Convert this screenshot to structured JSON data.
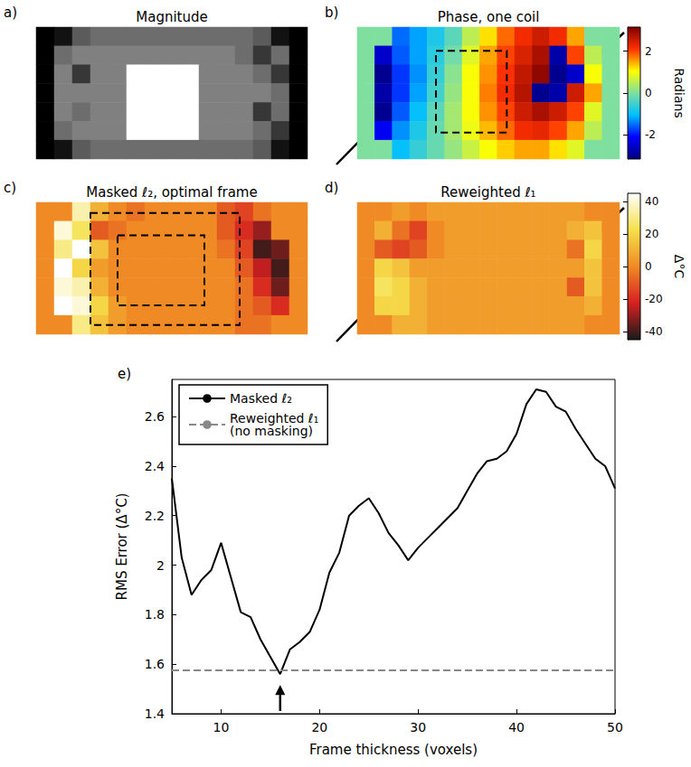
{
  "chart_data": [
    {
      "type": "heatmap",
      "panel_label": "a)",
      "title": "Magnitude",
      "color": "gray",
      "cells": [
        [
          0.05,
          0.1,
          0.3,
          0.35,
          0.35,
          0.35,
          0.35,
          0.35,
          0.35,
          0.35,
          0.35,
          0.35,
          0.3,
          0.1,
          0.05
        ],
        [
          0.05,
          0.35,
          0.4,
          0.4,
          0.4,
          0.4,
          0.4,
          0.4,
          0.4,
          0.4,
          0.4,
          0.35,
          0.2,
          0.35,
          0.05
        ],
        [
          0.05,
          0.4,
          0.2,
          0.4,
          0.4,
          0.75,
          0.75,
          0.75,
          0.75,
          0.4,
          0.4,
          0.4,
          0.35,
          0.2,
          0.05
        ],
        [
          0.05,
          0.4,
          0.4,
          0.4,
          0.4,
          0.75,
          0.75,
          0.75,
          0.75,
          0.4,
          0.4,
          0.4,
          0.4,
          0.35,
          0.05
        ],
        [
          0.05,
          0.4,
          0.35,
          0.4,
          0.4,
          0.75,
          0.75,
          0.75,
          0.75,
          0.4,
          0.4,
          0.4,
          0.2,
          0.35,
          0.05
        ],
        [
          0.05,
          0.35,
          0.4,
          0.4,
          0.4,
          0.75,
          0.75,
          0.75,
          0.75,
          0.4,
          0.4,
          0.4,
          0.35,
          0.2,
          0.05
        ],
        [
          0.05,
          0.1,
          0.3,
          0.35,
          0.35,
          0.35,
          0.35,
          0.35,
          0.35,
          0.35,
          0.35,
          0.35,
          0.3,
          0.1,
          0.05
        ]
      ]
    },
    {
      "type": "heatmap",
      "panel_label": "b)",
      "title": "Phase, one coil",
      "color": "jet",
      "colorbar": {
        "label": "Radians",
        "range": [
          -3.14,
          3.14
        ],
        "ticks": [
          -2,
          0,
          2
        ]
      },
      "cells": [
        [
          0,
          0,
          -1.5,
          -1.2,
          -0.8,
          -0.3,
          0.5,
          1.2,
          1.8,
          2.2,
          2.5,
          2.2,
          1.5,
          0,
          0
        ],
        [
          0,
          -2.5,
          -1.6,
          -1.2,
          -0.7,
          -0.1,
          0.8,
          1.5,
          2.0,
          2.4,
          2.8,
          -2.8,
          2.0,
          0.5,
          0
        ],
        [
          0,
          -3.0,
          -1.8,
          -1.3,
          -0.6,
          0.1,
          1.0,
          1.6,
          2.1,
          2.6,
          3.0,
          -3.0,
          -2.5,
          1.0,
          0
        ],
        [
          0,
          -2.8,
          -1.8,
          -1.2,
          -0.5,
          0.2,
          1.0,
          1.7,
          2.2,
          2.7,
          -3.0,
          -2.8,
          2.5,
          1.5,
          0
        ],
        [
          0,
          -3.0,
          -1.6,
          -1.0,
          -0.3,
          0.3,
          1.0,
          1.6,
          2.0,
          2.5,
          2.8,
          2.5,
          2.0,
          0.8,
          0
        ],
        [
          0,
          -2.2,
          -1.3,
          -0.8,
          -0.2,
          0.3,
          0.9,
          1.4,
          1.8,
          2.2,
          2.3,
          2.0,
          1.5,
          0.5,
          0
        ],
        [
          0,
          0,
          -1.0,
          -0.6,
          -0.2,
          0.2,
          0.6,
          1.0,
          1.3,
          1.5,
          1.5,
          1.2,
          0.8,
          0,
          0
        ]
      ]
    },
    {
      "type": "heatmap",
      "panel_label": "c)",
      "title": "Masked ℓ₂, optimal frame",
      "color": "hot",
      "color_range": [
        -45,
        45
      ],
      "cells": [
        [
          0,
          0,
          35,
          10,
          0,
          -5,
          0,
          0,
          0,
          0,
          -10,
          -15,
          -5,
          0,
          0
        ],
        [
          0,
          40,
          25,
          -10,
          -5,
          0,
          0,
          0,
          0,
          0,
          -10,
          -20,
          -30,
          0,
          0
        ],
        [
          0,
          30,
          45,
          15,
          0,
          0,
          0,
          0,
          0,
          0,
          -5,
          -15,
          -40,
          -35,
          0
        ],
        [
          0,
          45,
          20,
          5,
          0,
          0,
          0,
          0,
          0,
          0,
          0,
          -10,
          -25,
          -40,
          0
        ],
        [
          0,
          40,
          35,
          10,
          0,
          0,
          0,
          0,
          0,
          0,
          0,
          -5,
          -20,
          -35,
          0
        ],
        [
          0,
          45,
          40,
          20,
          5,
          0,
          0,
          0,
          0,
          0,
          0,
          -5,
          -10,
          -20,
          0
        ],
        [
          0,
          0,
          30,
          15,
          5,
          0,
          0,
          0,
          0,
          0,
          0,
          -5,
          -5,
          0,
          0
        ]
      ]
    },
    {
      "type": "heatmap",
      "panel_label": "d)",
      "title": "Reweighted ℓ₁",
      "color": "hot",
      "colorbar": {
        "label": "Δ°C",
        "range": [
          -45,
          45
        ],
        "ticks": [
          -40,
          -20,
          0,
          20,
          40
        ]
      },
      "cells": [
        [
          0,
          0,
          5,
          0,
          5,
          5,
          5,
          5,
          5,
          5,
          5,
          5,
          5,
          0,
          0
        ],
        [
          0,
          10,
          -5,
          -15,
          0,
          5,
          5,
          5,
          5,
          5,
          5,
          5,
          10,
          15,
          0
        ],
        [
          0,
          -10,
          -15,
          -10,
          0,
          5,
          5,
          5,
          5,
          5,
          5,
          5,
          -5,
          20,
          0
        ],
        [
          0,
          20,
          15,
          5,
          5,
          5,
          5,
          5,
          5,
          5,
          5,
          5,
          5,
          15,
          0
        ],
        [
          0,
          25,
          20,
          10,
          5,
          5,
          5,
          5,
          5,
          5,
          5,
          5,
          -10,
          15,
          0
        ],
        [
          0,
          20,
          20,
          10,
          5,
          5,
          5,
          5,
          5,
          5,
          5,
          5,
          5,
          10,
          0
        ],
        [
          0,
          0,
          10,
          10,
          5,
          5,
          5,
          5,
          5,
          5,
          5,
          5,
          5,
          0,
          0
        ]
      ]
    },
    {
      "type": "line",
      "panel_label": "e)",
      "x_label": "Frame thickness (voxels)",
      "y_label": "RMS Error (Δ°C)",
      "xlim": [
        5,
        50
      ],
      "xticks": [
        10,
        20,
        30,
        40,
        50
      ],
      "ylim": [
        1.4,
        2.75
      ],
      "yticks": [
        1.4,
        1.6,
        1.8,
        2,
        2.2,
        2.4,
        2.6
      ],
      "grid": false,
      "legend": "upper left",
      "series": [
        {
          "name": "Masked ℓ₂",
          "color": "#000000",
          "line_style": "solid",
          "x": [
            5,
            6,
            7,
            8,
            9,
            10,
            11,
            12,
            13,
            14,
            15,
            16,
            17,
            18,
            19,
            20,
            21,
            22,
            23,
            24,
            25,
            26,
            27,
            28,
            29,
            30,
            31,
            32,
            33,
            34,
            35,
            36,
            37,
            38,
            39,
            40,
            41,
            42,
            43,
            44,
            45,
            46,
            47,
            48,
            49,
            50
          ],
          "values": [
            2.35,
            2.03,
            1.88,
            1.94,
            1.98,
            2.09,
            1.95,
            1.81,
            1.79,
            1.7,
            1.63,
            1.56,
            1.66,
            1.69,
            1.73,
            1.82,
            1.97,
            2.05,
            2.2,
            2.24,
            2.27,
            2.21,
            2.13,
            2.08,
            2.02,
            2.07,
            2.11,
            2.15,
            2.19,
            2.23,
            2.3,
            2.37,
            2.42,
            2.43,
            2.46,
            2.53,
            2.65,
            2.71,
            2.7,
            2.64,
            2.62,
            2.55,
            2.49,
            2.43,
            2.4,
            2.31
          ]
        },
        {
          "name": "Reweighted ℓ₁\n(no masking)",
          "color": "#888888",
          "line_style": "dashed",
          "x": [
            5,
            50
          ],
          "values": [
            1.575,
            1.575
          ]
        }
      ]
    }
  ]
}
